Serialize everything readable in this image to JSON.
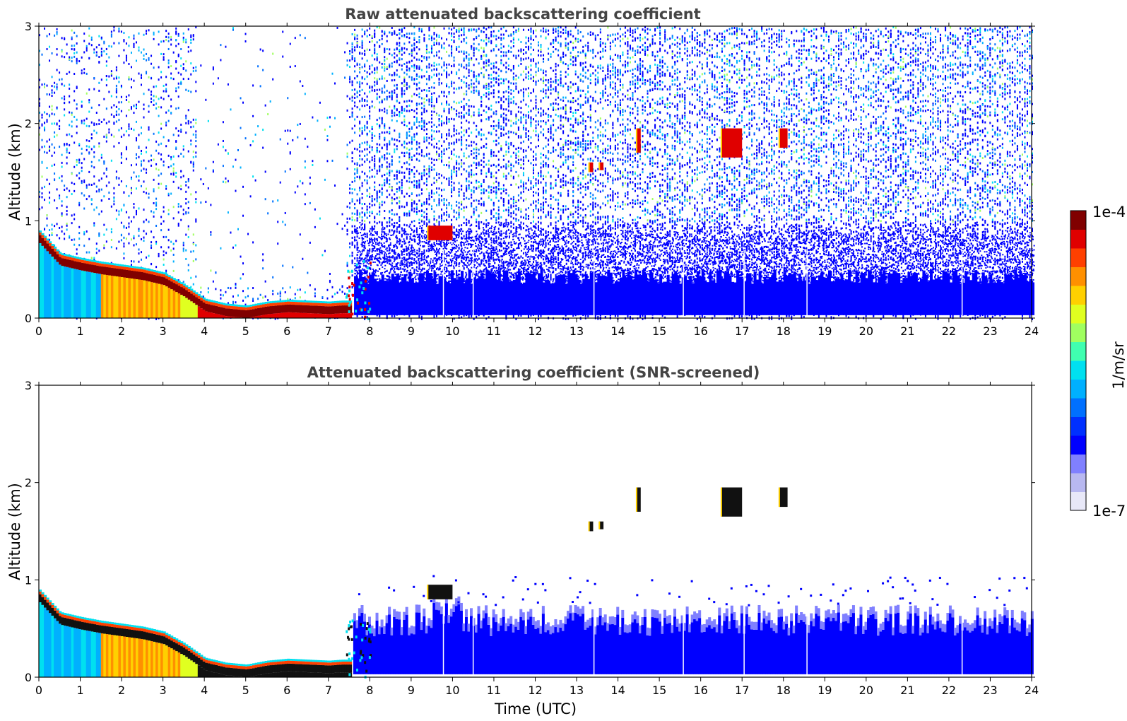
{
  "chart_data": [
    {
      "type": "heatmap",
      "title": "Raw attenuated backscattering coefficient",
      "ylabel": "Altitude (km)",
      "xlabel": "",
      "x_ticks": [
        "0",
        "1",
        "2",
        "3",
        "4",
        "5",
        "6",
        "7",
        "8",
        "9",
        "10",
        "11",
        "12",
        "13",
        "14",
        "15",
        "16",
        "17",
        "18",
        "19",
        "20",
        "21",
        "22",
        "23",
        "24"
      ],
      "y_ticks": [
        "0",
        "1",
        "2",
        "3"
      ],
      "xlim": [
        0,
        24
      ],
      "ylim": [
        0,
        3
      ],
      "colormap": "jet",
      "features": {
        "boundary_layer_top_km": [
          [
            0,
            0.85
          ],
          [
            0.5,
            0.62
          ],
          [
            1,
            0.57
          ],
          [
            1.5,
            0.53
          ],
          [
            2,
            0.5
          ],
          [
            2.5,
            0.47
          ],
          [
            3,
            0.42
          ],
          [
            3.5,
            0.3
          ],
          [
            4,
            0.15
          ],
          [
            4.5,
            0.1
          ],
          [
            5,
            0.08
          ],
          [
            5.5,
            0.12
          ],
          [
            6,
            0.14
          ],
          [
            6.5,
            0.13
          ],
          [
            7,
            0.12
          ],
          [
            7.3,
            0.13
          ]
        ],
        "transition_time_h": 7.5,
        "clouds": [
          {
            "t0": 9.4,
            "t1": 10.0,
            "z0": 0.8,
            "z1": 0.95
          },
          {
            "t0": 13.3,
            "t1": 13.4,
            "z0": 1.5,
            "z1": 1.6
          },
          {
            "t0": 13.55,
            "t1": 13.65,
            "z0": 1.52,
            "z1": 1.6
          },
          {
            "t0": 14.45,
            "t1": 14.55,
            "z0": 1.7,
            "z1": 1.95
          },
          {
            "t0": 16.5,
            "t1": 17.0,
            "z0": 1.65,
            "z1": 1.95
          },
          {
            "t0": 17.9,
            "t1": 18.1,
            "z0": 1.75,
            "z1": 1.95
          }
        ],
        "gaps_h": [
          9.78,
          10.5,
          13.42,
          15.58,
          17.05,
          18.57,
          22.32
        ]
      }
    },
    {
      "type": "heatmap",
      "title": "Attenuated backscattering coefficient (SNR-screened)",
      "ylabel": "Altitude (km)",
      "xlabel": "Time (UTC)",
      "x_ticks": [
        "0",
        "1",
        "2",
        "3",
        "4",
        "5",
        "6",
        "7",
        "8",
        "9",
        "10",
        "11",
        "12",
        "13",
        "14",
        "15",
        "16",
        "17",
        "18",
        "19",
        "20",
        "21",
        "22",
        "23",
        "24"
      ],
      "y_ticks": [
        "0",
        "1",
        "2",
        "3"
      ],
      "xlim": [
        0,
        24
      ],
      "ylim": [
        0,
        3
      ],
      "colormap": "jet"
    }
  ],
  "colorbar": {
    "top_label": "1e-4",
    "bottom_label": "1e-7",
    "unit_label": "1/m/sr",
    "colors": [
      "#e8e8f8",
      "#b8b8f0",
      "#8080ff",
      "#0000ff",
      "#0030ff",
      "#0070ff",
      "#00b0ff",
      "#00e0f0",
      "#40ffb0",
      "#a0ff60",
      "#e0ff20",
      "#ffd000",
      "#ff9000",
      "#ff4000",
      "#e00000",
      "#800000"
    ]
  }
}
